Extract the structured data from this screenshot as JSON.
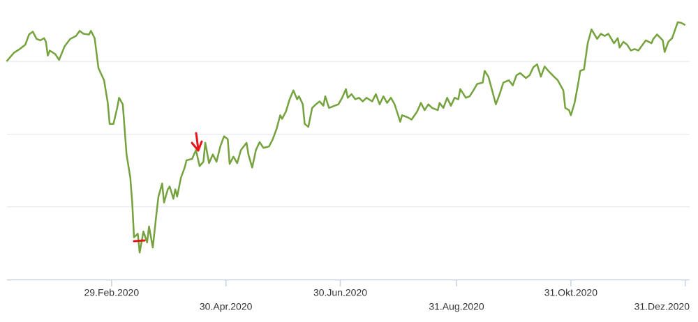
{
  "chart_data": {
    "type": "line",
    "x": [
      "2020-01-04",
      "2020-01-08",
      "2020-01-11",
      "2020-01-14",
      "2020-01-16",
      "2020-01-18",
      "2020-01-20",
      "2020-01-22",
      "2020-01-24",
      "2020-01-25",
      "2020-01-26",
      "2020-01-27",
      "2020-01-30",
      "2020-02-01",
      "2020-02-04",
      "2020-02-07",
      "2020-02-10",
      "2020-02-12",
      "2020-02-14",
      "2020-02-17",
      "2020-02-18",
      "2020-02-20",
      "2020-02-22",
      "2020-02-25",
      "2020-02-27",
      "2020-02-28",
      "2020-03-01",
      "2020-03-03",
      "2020-03-04",
      "2020-03-06",
      "2020-03-08",
      "2020-03-10",
      "2020-03-11",
      "2020-03-12",
      "2020-03-14",
      "2020-03-15",
      "2020-03-17",
      "2020-03-19",
      "2020-03-20",
      "2020-03-22",
      "2020-03-24",
      "2020-03-25",
      "2020-03-27",
      "2020-03-28",
      "2020-03-30",
      "2020-03-31",
      "2020-04-02",
      "2020-04-03",
      "2020-04-04",
      "2020-04-06",
      "2020-04-08",
      "2020-04-09",
      "2020-04-12",
      "2020-04-14",
      "2020-04-16",
      "2020-04-18",
      "2020-04-19",
      "2020-04-21",
      "2020-04-23",
      "2020-04-25",
      "2020-04-27",
      "2020-04-29",
      "2020-05-01",
      "2020-05-02",
      "2020-05-04",
      "2020-05-06",
      "2020-05-08",
      "2020-05-11",
      "2020-05-12",
      "2020-05-14",
      "2020-05-16",
      "2020-05-18",
      "2020-05-20",
      "2020-05-23",
      "2020-05-25",
      "2020-05-27",
      "2020-05-29",
      "2020-05-30",
      "2020-06-01",
      "2020-06-03",
      "2020-06-05",
      "2020-06-07",
      "2020-06-08",
      "2020-06-10",
      "2020-06-11",
      "2020-06-13",
      "2020-06-15",
      "2020-06-17",
      "2020-06-19",
      "2020-06-21",
      "2020-06-22",
      "2020-06-24",
      "2020-06-27",
      "2020-06-29",
      "2020-07-01",
      "2020-07-03",
      "2020-07-04",
      "2020-07-06",
      "2020-07-08",
      "2020-07-10",
      "2020-07-12",
      "2020-07-14",
      "2020-07-17",
      "2020-07-19",
      "2020-07-21",
      "2020-07-23",
      "2020-07-25",
      "2020-07-27",
      "2020-07-29",
      "2020-08-01",
      "2020-08-02",
      "2020-08-05",
      "2020-08-07",
      "2020-08-10",
      "2020-08-12",
      "2020-08-14",
      "2020-08-16",
      "2020-08-18",
      "2020-08-21",
      "2020-08-22",
      "2020-08-24",
      "2020-08-26",
      "2020-08-28",
      "2020-08-30",
      "2020-09-01",
      "2020-09-02",
      "2020-09-05",
      "2020-09-07",
      "2020-09-09",
      "2020-09-11",
      "2020-09-14",
      "2020-09-15",
      "2020-09-17",
      "2020-09-19",
      "2020-09-21",
      "2020-09-23",
      "2020-09-25",
      "2020-09-28",
      "2020-09-30",
      "2020-10-02",
      "2020-10-04",
      "2020-10-07",
      "2020-10-09",
      "2020-10-11",
      "2020-10-13",
      "2020-10-15",
      "2020-10-17",
      "2020-10-19",
      "2020-10-22",
      "2020-10-24",
      "2020-10-27",
      "2020-10-28",
      "2020-10-30",
      "2020-10-31",
      "2020-11-02",
      "2020-11-04",
      "2020-11-05",
      "2020-11-07",
      "2020-11-09",
      "2020-11-11",
      "2020-11-14",
      "2020-11-16",
      "2020-11-18",
      "2020-11-20",
      "2020-11-23",
      "2020-11-25",
      "2020-11-26",
      "2020-11-28",
      "2020-11-30",
      "2020-12-02",
      "2020-12-04",
      "2020-12-06",
      "2020-12-08",
      "2020-12-10",
      "2020-12-13",
      "2020-12-14",
      "2020-12-16",
      "2020-12-19",
      "2020-12-20",
      "2020-12-22",
      "2020-12-24",
      "2020-12-27",
      "2020-12-29",
      "2020-12-31"
    ],
    "values": [
      3.0,
      3.12,
      3.17,
      3.23,
      3.37,
      3.41,
      3.31,
      3.29,
      3.32,
      3.27,
      3.08,
      3.15,
      3.1,
      3.02,
      3.21,
      3.31,
      3.35,
      3.42,
      3.38,
      3.37,
      3.42,
      3.32,
      2.91,
      2.74,
      2.43,
      2.14,
      2.14,
      2.36,
      2.5,
      2.41,
      1.72,
      1.4,
      1.06,
      0.58,
      0.63,
      0.37,
      0.66,
      0.51,
      0.73,
      0.44,
      0.92,
      1.14,
      1.32,
      1.06,
      1.24,
      1.28,
      1.11,
      1.24,
      1.14,
      1.4,
      1.54,
      1.64,
      1.66,
      1.78,
      1.56,
      1.62,
      1.88,
      1.6,
      1.72,
      1.62,
      1.83,
      1.97,
      1.93,
      1.59,
      1.69,
      1.6,
      1.78,
      1.88,
      1.72,
      1.54,
      1.78,
      1.89,
      1.81,
      1.83,
      1.93,
      2.07,
      2.26,
      2.21,
      2.31,
      2.48,
      2.6,
      2.48,
      2.52,
      2.41,
      2.14,
      2.1,
      2.36,
      2.41,
      2.45,
      2.39,
      2.52,
      2.36,
      2.39,
      2.41,
      2.5,
      2.62,
      2.5,
      2.55,
      2.48,
      2.5,
      2.45,
      2.5,
      2.45,
      2.55,
      2.41,
      2.52,
      2.43,
      2.5,
      2.41,
      2.17,
      2.26,
      2.23,
      2.2,
      2.31,
      2.43,
      2.33,
      2.41,
      2.36,
      2.33,
      2.43,
      2.36,
      2.5,
      2.39,
      2.5,
      2.48,
      2.62,
      2.5,
      2.52,
      2.6,
      2.69,
      2.71,
      2.87,
      2.79,
      2.6,
      2.41,
      2.55,
      2.71,
      2.74,
      2.67,
      2.81,
      2.84,
      2.77,
      2.81,
      2.92,
      2.96,
      2.79,
      2.93,
      2.87,
      2.79,
      2.74,
      2.6,
      2.36,
      2.33,
      2.26,
      2.43,
      2.71,
      2.87,
      2.89,
      3.25,
      3.44,
      3.31,
      3.38,
      3.35,
      3.38,
      3.25,
      3.32,
      3.19,
      3.27,
      3.23,
      3.15,
      3.17,
      3.15,
      3.22,
      3.29,
      3.25,
      3.31,
      3.37,
      3.29,
      3.13,
      3.27,
      3.32,
      3.54,
      3.53,
      3.5
    ],
    "color": "#74a23c",
    "xlim": [
      "2020-01-04",
      "2020-12-31"
    ],
    "xticks": [
      {
        "value": "2020-02-29",
        "label": "29.Feb.2020"
      },
      {
        "value": "2020-04-30",
        "label": "30.Apr.2020"
      },
      {
        "value": "2020-06-30",
        "label": "30.Jun.2020"
      },
      {
        "value": "2020-08-31",
        "label": "31.Aug.2020"
      },
      {
        "value": "2020-10-31",
        "label": "31.Okt.2020"
      },
      {
        "value": "2020-12-31",
        "label": "31.Dez.2020"
      }
    ],
    "ylim": [
      0,
      3.8
    ],
    "grid_lines": [
      1,
      2,
      3
    ]
  }
}
